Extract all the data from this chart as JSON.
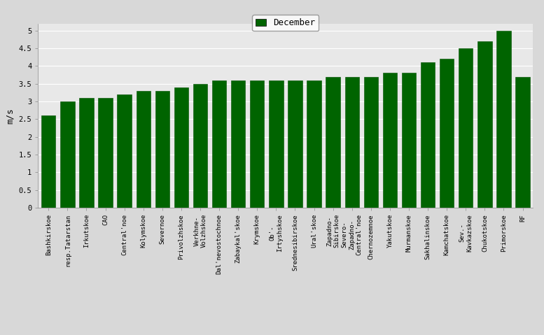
{
  "categories": [
    "Bashkirskoe",
    "resp.Tatarstan",
    "Irkutskoe",
    "CAO",
    "Central'noe",
    "Kolymskoe",
    "Severnoe",
    "Privolzhskoe",
    "Verkhne-\nVolzhskoe",
    "Dal'nevostochnoe",
    "Zabaykal'skoe",
    "Krymskoe",
    "Ob'-\nIrtyshskoe",
    "Srednesibirskoe",
    "Ural'skoe",
    "Zapadno-\nSibirskoe",
    "Severo-\nZapadno-\nCentral'noe",
    "Chernozemnoe",
    "Yakutskoe",
    "Murmanskoe",
    "Sakhalinskoe",
    "Kamchatskoe",
    "Sev.-\nKavkazskoe",
    "Chukotskoe",
    "Primorskoe",
    "RF"
  ],
  "values": [
    2.6,
    3.0,
    3.1,
    3.1,
    3.2,
    3.3,
    3.3,
    3.4,
    3.5,
    3.6,
    3.6,
    3.6,
    3.6,
    3.6,
    3.6,
    3.7,
    3.7,
    3.7,
    3.8,
    3.8,
    4.1,
    4.2,
    4.5,
    4.7,
    5.0,
    3.7
  ],
  "bar_color": "#006400",
  "bar_edge_color": "#005000",
  "ylabel": "m/s",
  "ylim": [
    0,
    5.2
  ],
  "yticks": [
    0,
    0.5,
    1.0,
    1.5,
    2.0,
    2.5,
    3.0,
    3.5,
    4.0,
    4.5,
    5.0
  ],
  "ytick_labels": [
    "0",
    "0.5",
    "1",
    "1.5",
    "2",
    "2.5",
    "3",
    "3.5",
    "4",
    "4.5",
    "5"
  ],
  "legend_label": "December",
  "background_color": "#d8d8d8",
  "plot_area_color": "#e8e8e8",
  "grid_color": "#ffffff",
  "tick_fontsize": 7.5,
  "ylabel_fontsize": 9,
  "legend_fontsize": 9,
  "xlabel_fontsize": 6.5
}
